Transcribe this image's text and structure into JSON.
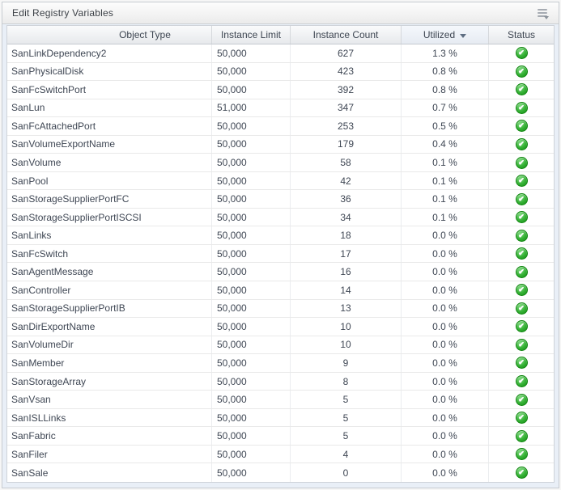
{
  "panel": {
    "title": "Edit Registry Variables",
    "menu_icon": "panel-menu-with-caret"
  },
  "icons": {
    "panel_menu": "list-lines-with-down-caret",
    "sort_indicator": "caret-down",
    "status_ok": "green-circle-white-check"
  },
  "colors": {
    "status_ok_green": "#2fae2f",
    "header_text": "#3e4652",
    "row_text": "#3f4754",
    "panel_body": "#e9eff7"
  },
  "table": {
    "columns": [
      {
        "key": "object_type",
        "label": "Object Type"
      },
      {
        "key": "instance_limit",
        "label": "Instance Limit"
      },
      {
        "key": "instance_count",
        "label": "Instance Count"
      },
      {
        "key": "utilized",
        "label": "Utilized",
        "sorted": "desc"
      },
      {
        "key": "status",
        "label": "Status"
      }
    ],
    "rows": [
      {
        "object_type": "SanLinkDependency2",
        "instance_limit": "50,000",
        "instance_count": "627",
        "utilized": "1.3 %",
        "status": "ok"
      },
      {
        "object_type": "SanPhysicalDisk",
        "instance_limit": "50,000",
        "instance_count": "423",
        "utilized": "0.8 %",
        "status": "ok"
      },
      {
        "object_type": "SanFcSwitchPort",
        "instance_limit": "50,000",
        "instance_count": "392",
        "utilized": "0.8 %",
        "status": "ok"
      },
      {
        "object_type": "SanLun",
        "instance_limit": "51,000",
        "instance_count": "347",
        "utilized": "0.7 %",
        "status": "ok"
      },
      {
        "object_type": "SanFcAttachedPort",
        "instance_limit": "50,000",
        "instance_count": "253",
        "utilized": "0.5 %",
        "status": "ok"
      },
      {
        "object_type": "SanVolumeExportName",
        "instance_limit": "50,000",
        "instance_count": "179",
        "utilized": "0.4 %",
        "status": "ok"
      },
      {
        "object_type": "SanVolume",
        "instance_limit": "50,000",
        "instance_count": "58",
        "utilized": "0.1 %",
        "status": "ok"
      },
      {
        "object_type": "SanPool",
        "instance_limit": "50,000",
        "instance_count": "42",
        "utilized": "0.1 %",
        "status": "ok"
      },
      {
        "object_type": "SanStorageSupplierPortFC",
        "instance_limit": "50,000",
        "instance_count": "36",
        "utilized": "0.1 %",
        "status": "ok"
      },
      {
        "object_type": "SanStorageSupplierPortISCSI",
        "instance_limit": "50,000",
        "instance_count": "34",
        "utilized": "0.1 %",
        "status": "ok"
      },
      {
        "object_type": "SanLinks",
        "instance_limit": "50,000",
        "instance_count": "18",
        "utilized": "0.0 %",
        "status": "ok"
      },
      {
        "object_type": "SanFcSwitch",
        "instance_limit": "50,000",
        "instance_count": "17",
        "utilized": "0.0 %",
        "status": "ok"
      },
      {
        "object_type": "SanAgentMessage",
        "instance_limit": "50,000",
        "instance_count": "16",
        "utilized": "0.0 %",
        "status": "ok"
      },
      {
        "object_type": "SanController",
        "instance_limit": "50,000",
        "instance_count": "14",
        "utilized": "0.0 %",
        "status": "ok"
      },
      {
        "object_type": "SanStorageSupplierPortIB",
        "instance_limit": "50,000",
        "instance_count": "13",
        "utilized": "0.0 %",
        "status": "ok"
      },
      {
        "object_type": "SanDirExportName",
        "instance_limit": "50,000",
        "instance_count": "10",
        "utilized": "0.0 %",
        "status": "ok"
      },
      {
        "object_type": "SanVolumeDir",
        "instance_limit": "50,000",
        "instance_count": "10",
        "utilized": "0.0 %",
        "status": "ok"
      },
      {
        "object_type": "SanMember",
        "instance_limit": "50,000",
        "instance_count": "9",
        "utilized": "0.0 %",
        "status": "ok"
      },
      {
        "object_type": "SanStorageArray",
        "instance_limit": "50,000",
        "instance_count": "8",
        "utilized": "0.0 %",
        "status": "ok"
      },
      {
        "object_type": "SanVsan",
        "instance_limit": "50,000",
        "instance_count": "5",
        "utilized": "0.0 %",
        "status": "ok"
      },
      {
        "object_type": "SanISLLinks",
        "instance_limit": "50,000",
        "instance_count": "5",
        "utilized": "0.0 %",
        "status": "ok"
      },
      {
        "object_type": "SanFabric",
        "instance_limit": "50,000",
        "instance_count": "5",
        "utilized": "0.0 %",
        "status": "ok"
      },
      {
        "object_type": "SanFiler",
        "instance_limit": "50,000",
        "instance_count": "4",
        "utilized": "0.0 %",
        "status": "ok"
      },
      {
        "object_type": "SanSale",
        "instance_limit": "50,000",
        "instance_count": "0",
        "utilized": "0.0 %",
        "status": "ok"
      }
    ]
  }
}
